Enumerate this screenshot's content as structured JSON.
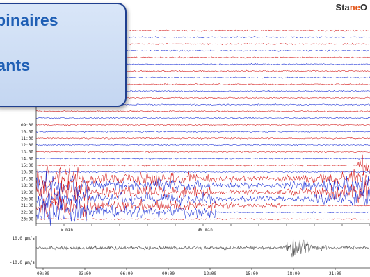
{
  "brand": {
    "prefix": "Sta",
    "accent": "ne",
    "suffix": "O"
  },
  "callout": {
    "line1": "ebinaires",
    "line2": "nants"
  },
  "helicorder": {
    "row_labels": [
      "09:00",
      "10:00",
      "11:00",
      "12:00",
      "13:00",
      "14:00",
      "15:00",
      "16:00",
      "17:00",
      "18:00",
      "19:00",
      "20:00",
      "21:00",
      "22:00",
      "23:00"
    ],
    "time_axis_labels": [
      "5 min",
      "30 min"
    ],
    "amplitude_labels": [
      "10.0 µm/s",
      "-10.0 µm/s"
    ],
    "waveform_axis_labels": [
      "00:00",
      "03:00",
      "06:00",
      "09:00",
      "12:00",
      "15:00",
      "18:00",
      "21:00"
    ]
  },
  "colors": {
    "trace_red": "#d41818",
    "trace_blue": "#1a2fd6",
    "waveform": "#555555",
    "callout_border": "#1f3f8f",
    "callout_text": "#1f5fb5",
    "brand_accent": "#e4571b"
  }
}
